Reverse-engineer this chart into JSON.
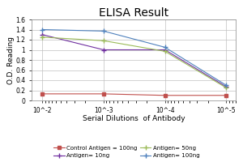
{
  "title": "ELISA Result",
  "xlabel": "Serial Dilutions  of Antibody",
  "ylabel": "O.D. Reading",
  "x_values": [
    0.01,
    0.001,
    0.0001,
    1e-05
  ],
  "x_labels": [
    "10^-2",
    "10^-3",
    "10^-4",
    "10^-5"
  ],
  "series": [
    {
      "label": "Control Antigen = 100ng",
      "color": "#c0504d",
      "marker": "s",
      "markersize": 3,
      "linestyle": "-",
      "linewidth": 0.8,
      "values": [
        0.13,
        0.13,
        0.1,
        0.1
      ]
    },
    {
      "label": "Antigen= 10ng",
      "color": "#7f7f7f",
      "marker": "+",
      "markersize": 4,
      "linestyle": "-",
      "linewidth": 0.8,
      "values": [
        1.3,
        1.0,
        1.0,
        0.27
      ]
    },
    {
      "label": "Antigen= 50ng",
      "color": "#a6a6a6",
      "marker": "+",
      "markersize": 4,
      "linestyle": "-",
      "linewidth": 0.8,
      "values": [
        1.25,
        1.18,
        0.97,
        0.25
      ]
    },
    {
      "label": "Antigen= 100ng",
      "color": "#595959",
      "marker": "+",
      "markersize": 4,
      "linestyle": "-",
      "linewidth": 0.8,
      "values": [
        1.4,
        1.37,
        1.05,
        0.3
      ]
    }
  ],
  "ylim": [
    0,
    1.6
  ],
  "yticks": [
    0,
    0.2,
    0.4,
    0.6,
    0.8,
    1.0,
    1.2,
    1.4,
    1.6
  ],
  "ytick_labels": [
    "0",
    "0.2",
    "0.4",
    "0.6",
    "0.8",
    "1",
    "1.2",
    "1.4",
    "1.6"
  ],
  "background_color": "#ffffff",
  "grid_color": "#c0c0c0",
  "title_fontsize": 10,
  "label_fontsize": 6.5,
  "tick_fontsize": 5.5,
  "legend_fontsize": 5.0,
  "legend_colors": [
    "#c0504d",
    "#7030a0",
    "#9bbb59",
    "#4f81bd"
  ],
  "legend_labels": [
    "Control Antigen = 100ng",
    "Antigen= 10ng",
    "Antigen= 50ng",
    "Antigen= 100ng"
  ]
}
